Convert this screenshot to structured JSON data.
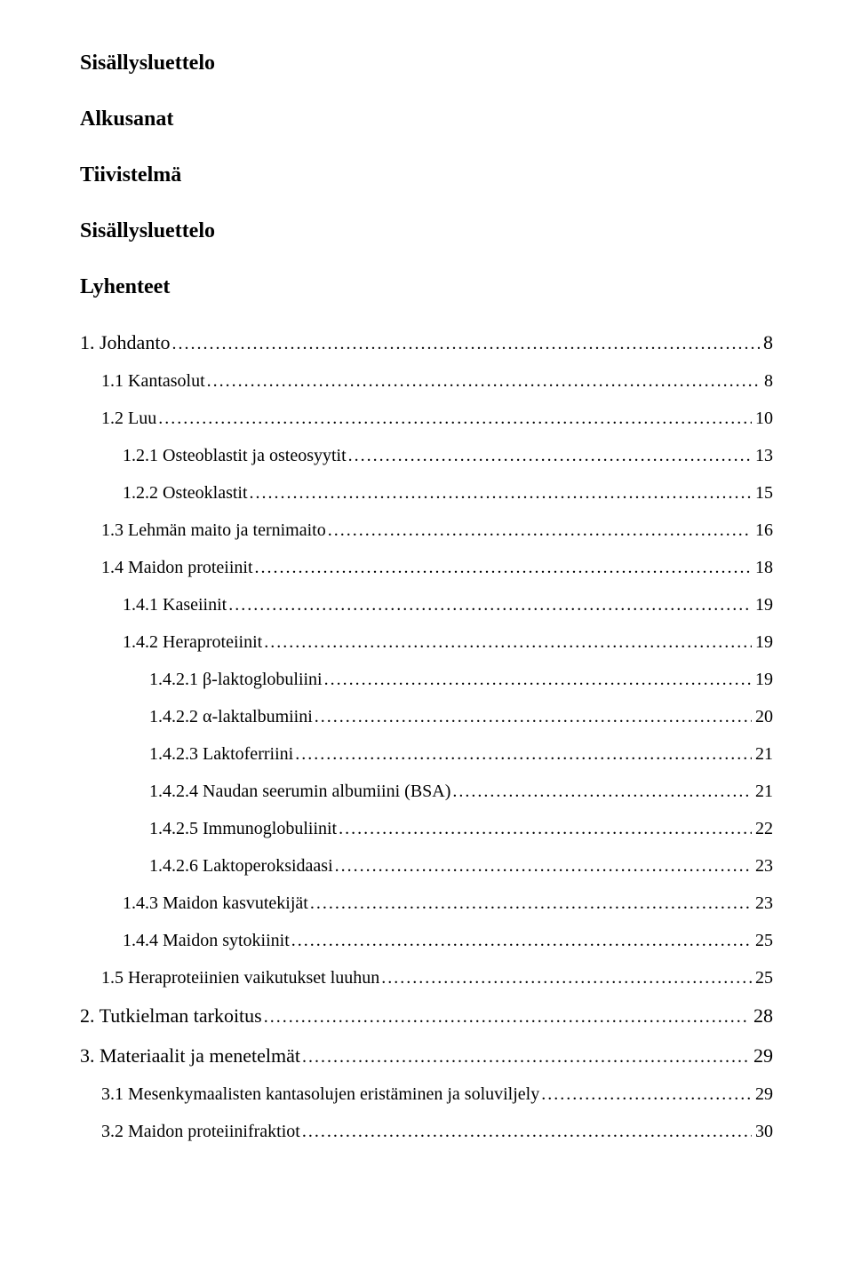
{
  "headings": {
    "title": "Sisällysluettelo",
    "h1": "Alkusanat",
    "h2": "Tiivistelmä",
    "h3": "Sisällysluettelo",
    "h4": "Lyhenteet"
  },
  "toc": [
    {
      "level": 0,
      "label": "1. Johdanto",
      "page": "8"
    },
    {
      "level": 1,
      "label": "1.1 Kantasolut",
      "page": "8"
    },
    {
      "level": 1,
      "label": "1.2 Luu",
      "page": "10"
    },
    {
      "level": 2,
      "label": "1.2.1 Osteoblastit ja osteosyytit",
      "page": "13"
    },
    {
      "level": 2,
      "label": "1.2.2 Osteoklastit",
      "page": "15"
    },
    {
      "level": 1,
      "label": "1.3 Lehmän maito ja ternimaito",
      "page": "16"
    },
    {
      "level": 1,
      "label": "1.4 Maidon proteiinit",
      "page": "18"
    },
    {
      "level": 2,
      "label": "1.4.1 Kaseiinit",
      "page": "19"
    },
    {
      "level": 2,
      "label": "1.4.2 Heraproteiinit",
      "page": "19"
    },
    {
      "level": 3,
      "label": "1.4.2.1 β-laktoglobuliini",
      "page": "19"
    },
    {
      "level": 3,
      "label": "1.4.2.2 α-laktalbumiini",
      "page": "20"
    },
    {
      "level": 3,
      "label": "1.4.2.3 Laktoferriini",
      "page": "21"
    },
    {
      "level": 3,
      "label": "1.4.2.4 Naudan seerumin albumiini (BSA)",
      "page": "21"
    },
    {
      "level": 3,
      "label": "1.4.2.5 Immunoglobuliinit",
      "page": "22"
    },
    {
      "level": 3,
      "label": "1.4.2.6 Laktoperoksidaasi",
      "page": "23"
    },
    {
      "level": 2,
      "label": "1.4.3 Maidon kasvutekijät",
      "page": "23"
    },
    {
      "level": 2,
      "label": "1.4.4 Maidon sytokiinit",
      "page": "25"
    },
    {
      "level": 1,
      "label": "1.5 Heraproteiinien vaikutukset luuhun",
      "page": "25"
    },
    {
      "level": 0,
      "label": "2. Tutkielman tarkoitus",
      "page": "28"
    },
    {
      "level": 0,
      "label": "3. Materiaalit ja menetelmät",
      "page": "29"
    },
    {
      "level": 1,
      "label": "3.1 Mesenkymaalisten kantasolujen eristäminen ja soluviljely",
      "page": "29"
    },
    {
      "level": 1,
      "label": "3.2 Maidon proteiinifraktiot",
      "page": "30"
    }
  ]
}
